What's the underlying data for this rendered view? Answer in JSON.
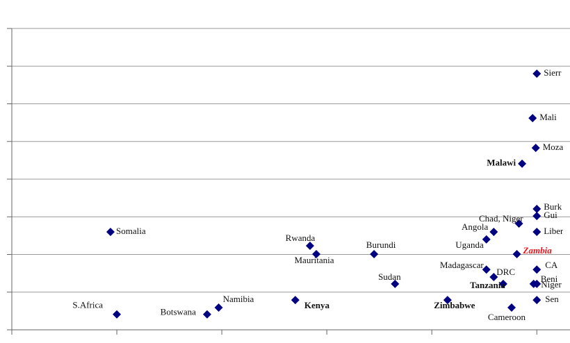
{
  "chart_data": {
    "type": "scatter",
    "color": "#000080",
    "grid": true,
    "xlim": [
      0,
      5.25
    ],
    "xticks": [
      0,
      1,
      2,
      3,
      4,
      5
    ],
    "ylim": [
      0,
      8
    ],
    "yticks": [
      0,
      1,
      2,
      3,
      4,
      5,
      6,
      7,
      8
    ],
    "labels": [
      "Sierr",
      "Mali",
      "Moza",
      "Malawi",
      "Burk",
      "Gui",
      "Chad, Niger",
      "Liber",
      "Angola",
      "Uganda",
      "Zambia",
      "CA",
      "Madagascar",
      "DRC",
      "Beni",
      "Niger",
      "Tanzania",
      "Sen",
      "Zimbabwe",
      "Cameroon",
      "Sudan",
      "Burundi",
      "Rwanda",
      "Mauritania",
      "Somalia",
      "Kenya",
      "Namibia",
      "Botswana",
      "S.Africa"
    ],
    "x": [
      5.0,
      4.96,
      4.99,
      4.86,
      5.0,
      5.0,
      4.83,
      5.0,
      4.59,
      4.52,
      4.81,
      5.0,
      4.52,
      4.59,
      4.97,
      5.0,
      4.68,
      5.0,
      4.15,
      4.76,
      3.65,
      3.45,
      2.84,
      2.9,
      0.94,
      2.7,
      1.97,
      1.86,
      1.0
    ],
    "values": [
      6.8,
      5.62,
      4.83,
      4.41,
      3.21,
      3.02,
      2.82,
      2.6,
      2.6,
      2.4,
      2.01,
      1.6,
      1.6,
      1.4,
      1.22,
      1.22,
      1.22,
      0.79,
      0.79,
      0.59,
      1.22,
      2.01,
      2.23,
      2.01,
      2.6,
      0.79,
      0.59,
      0.41,
      0.41
    ]
  }
}
